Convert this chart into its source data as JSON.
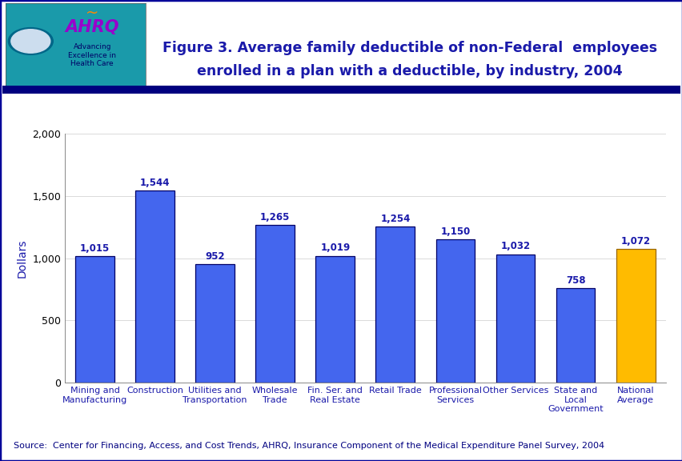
{
  "categories": [
    "Mining and\nManufacturing",
    "Construction",
    "Utilities and\nTransportation",
    "Wholesale\nTrade",
    "Fin. Ser. and\nReal Estate",
    "Retail Trade",
    "Professional\nServices",
    "Other Services",
    "State and\nLocal\nGovernment",
    "National\nAverage"
  ],
  "values": [
    1015,
    1544,
    952,
    1265,
    1019,
    1254,
    1150,
    1032,
    758,
    1072
  ],
  "value_labels": [
    "1,015",
    "1,544",
    "952",
    "1,265",
    "1,019",
    "1,254",
    "1,150",
    "1,032",
    "758",
    "1,072"
  ],
  "title_line1": "Figure 3. Average family deductible of non-Federal  employees",
  "title_line2": "enrolled in a plan with a deductible, by industry, 2004",
  "ylabel": "Dollars",
  "ylim": [
    0,
    2000
  ],
  "yticks": [
    0,
    500,
    1000,
    1500,
    2000
  ],
  "ytick_labels": [
    "0",
    "500",
    "1,000",
    "1,500",
    "2,000"
  ],
  "source_text": "Source:  Center for Financing, Access, and Cost Trends, AHRQ, Insurance Component of the Medical Expenditure Panel Survey, 2004",
  "background_color": "#FFFFFF",
  "title_color": "#1a1aaa",
  "label_color": "#1a1aaa",
  "source_color": "#000080",
  "blue_bar_color": "#4466EE",
  "blue_bar_edge": "#000066",
  "gold_bar_color": "#FFBB00",
  "gold_bar_edge": "#996600",
  "header_bg": "#FFFFFF",
  "outer_border_color": "#000099",
  "separator_color": "#00007F",
  "label_fontsize": 8,
  "title_fontsize": 12.5,
  "ylabel_fontsize": 10,
  "tick_fontsize": 9,
  "value_fontsize": 8.5,
  "source_fontsize": 8,
  "logo_box_bg": "#1a9aaa",
  "logo_text_color": "#FFFFFF"
}
